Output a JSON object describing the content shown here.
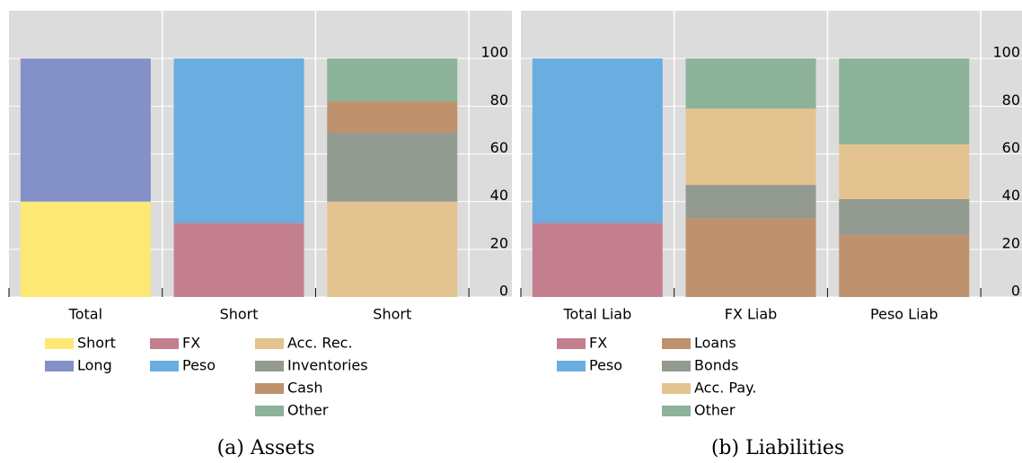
{
  "chart_data": [
    {
      "type": "stacked",
      "caption": "(a) Assets",
      "ylim": [
        0,
        120
      ],
      "yticks": [
        0,
        20,
        40,
        60,
        80,
        100
      ],
      "grid": true,
      "bars": [
        {
          "category": "Total",
          "segments": [
            {
              "name": "Short",
              "color": "#fde874",
              "value": 40
            },
            {
              "name": "Long",
              "color": "#8490c8",
              "value": 60
            }
          ]
        },
        {
          "category": "Short",
          "segments": [
            {
              "name": "FX",
              "color": "#c47f8f",
              "value": 31
            },
            {
              "name": "Peso",
              "color": "#6aade0",
              "value": 69
            }
          ]
        },
        {
          "category": "Short",
          "segments": [
            {
              "name": "Acc. Rec.",
              "color": "#e3c490",
              "value": 40
            },
            {
              "name": "Inventories",
              "color": "#939a8f",
              "value": 29
            },
            {
              "name": "Cash",
              "color": "#bf916d",
              "value": 13
            },
            {
              "name": "Other",
              "color": "#8db29a",
              "value": 18
            }
          ]
        }
      ]
    },
    {
      "type": "stacked",
      "caption": "(b) Liabilities",
      "ylim": [
        0,
        120
      ],
      "yticks": [
        0,
        20,
        40,
        60,
        80,
        100
      ],
      "grid": true,
      "bars": [
        {
          "category": "Total Liab",
          "segments": [
            {
              "name": "FX",
              "color": "#c47f8f",
              "value": 31
            },
            {
              "name": "Peso",
              "color": "#6aade0",
              "value": 69
            }
          ]
        },
        {
          "category": "FX Liab",
          "segments": [
            {
              "name": "Loans",
              "color": "#bf916d",
              "value": 33
            },
            {
              "name": "Bonds",
              "color": "#939a8f",
              "value": 14
            },
            {
              "name": "Acc. Pay.",
              "color": "#e3c490",
              "value": 32
            },
            {
              "name": "Other",
              "color": "#8db29a",
              "value": 21
            }
          ]
        },
        {
          "category": "Peso Liab",
          "segments": [
            {
              "name": "Loans",
              "color": "#bf916d",
              "value": 26
            },
            {
              "name": "Bonds",
              "color": "#939a8f",
              "value": 15
            },
            {
              "name": "Acc. Pay.",
              "color": "#e3c490",
              "value": 23
            },
            {
              "name": "Other",
              "color": "#8db29a",
              "value": 36
            }
          ]
        }
      ]
    }
  ]
}
